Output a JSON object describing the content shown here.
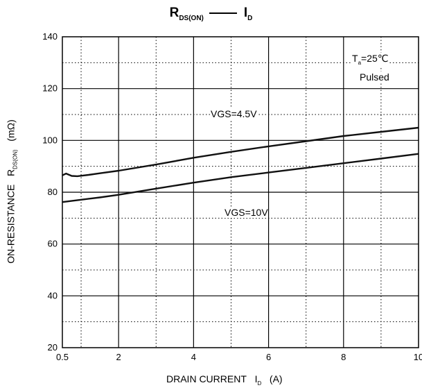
{
  "title": {
    "symbol": "R",
    "symbol_sub": "DS(ON)",
    "vs_symbol": "I",
    "vs_sub": "D"
  },
  "ylabel": {
    "text": "ON-RESISTANCE",
    "symbol": "R",
    "symbol_sub": "DS(ON)",
    "unit": "(mΩ)"
  },
  "xlabel": {
    "text": "DRAIN CURRENT",
    "symbol": "I",
    "symbol_sub": "D",
    "unit": "(A)"
  },
  "conditions": {
    "temp_symbol": "T",
    "temp_sub": "a",
    "temp_value": "=25℃",
    "mode": "Pulsed"
  },
  "chart_data": {
    "type": "line",
    "title": "RDS(ON) —— ID",
    "xlabel": "DRAIN CURRENT ID (A)",
    "ylabel": "ON-RESISTANCE RDS(ON) (mΩ)",
    "xlim": [
      0.5,
      10
    ],
    "ylim": [
      20,
      140
    ],
    "x_ticks": [
      {
        "value": 0.5,
        "label": "0.5"
      },
      {
        "value": 2,
        "label": "2"
      },
      {
        "value": 4,
        "label": "4"
      },
      {
        "value": 6,
        "label": "6"
      },
      {
        "value": 8,
        "label": "8"
      },
      {
        "value": 10,
        "label": "10"
      }
    ],
    "y_ticks": [
      {
        "value": 20,
        "label": "20"
      },
      {
        "value": 40,
        "label": "40"
      },
      {
        "value": 60,
        "label": "60"
      },
      {
        "value": 80,
        "label": "80"
      },
      {
        "value": 100,
        "label": "100"
      },
      {
        "value": 120,
        "label": "120"
      },
      {
        "value": 140,
        "label": "140"
      }
    ],
    "grid": "solid major, dotted minor",
    "series": [
      {
        "name": "VGS=4.5V",
        "x": [
          0.5,
          0.6,
          0.75,
          0.9,
          1.2,
          1.5,
          2,
          3,
          4,
          5,
          6,
          7,
          8,
          9,
          10
        ],
        "values": [
          86.5,
          87.2,
          86.3,
          86.2,
          86.7,
          87.3,
          88.3,
          90.7,
          93.3,
          95.6,
          97.7,
          99.7,
          101.7,
          103.3,
          104.9
        ]
      },
      {
        "name": "VGS=10V",
        "x": [
          0.5,
          1,
          1.5,
          2,
          3,
          4,
          5,
          6,
          7,
          8,
          9,
          10
        ],
        "values": [
          76.2,
          77.1,
          78.0,
          79.0,
          81.4,
          83.7,
          85.8,
          87.6,
          89.4,
          91.2,
          93.0,
          94.8
        ]
      }
    ]
  }
}
